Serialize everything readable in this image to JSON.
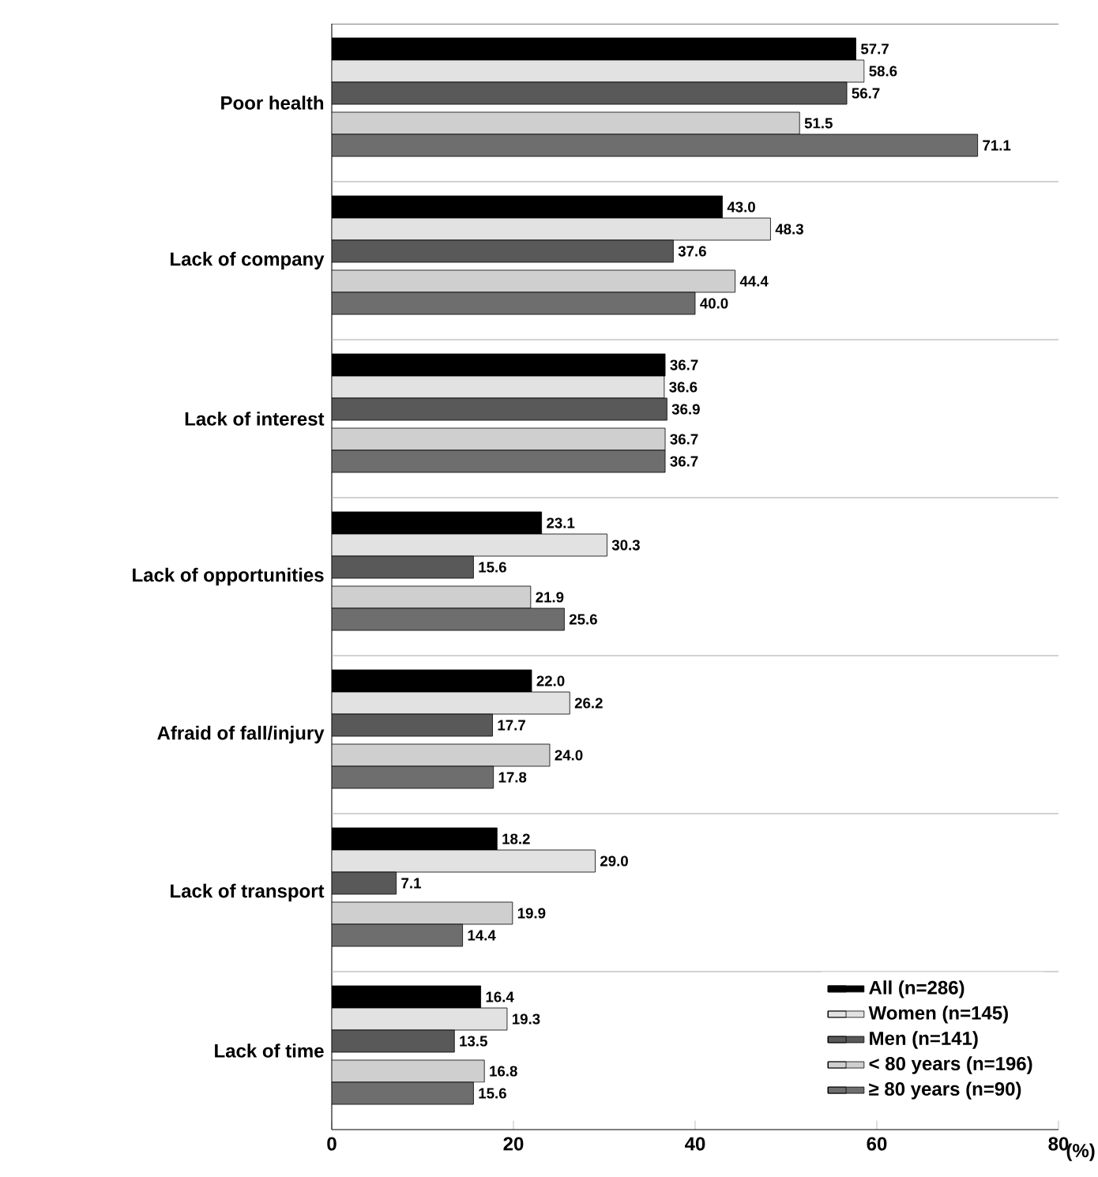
{
  "chart_data": {
    "type": "bar",
    "orientation": "horizontal",
    "xlabel": "(%)",
    "categories": [
      "Poor health",
      "Lack of company",
      "Lack of interest",
      "Lack of opportunities",
      "Afraid of fall/injury",
      "Lack of transport",
      "Lack of time"
    ],
    "series": [
      {
        "name": "All (n=286)",
        "color": "#000000",
        "values": [
          57.7,
          43.0,
          36.7,
          23.1,
          22.0,
          18.2,
          16.4
        ],
        "value_labels": [
          "57.7",
          "43.0",
          "36.7",
          "23.1",
          "22.0",
          "18.2",
          "16.4"
        ]
      },
      {
        "name": "Women (n=145)",
        "color": "#e2e2e2",
        "values": [
          58.6,
          48.3,
          36.6,
          30.3,
          26.2,
          29.0,
          19.3
        ],
        "value_labels": [
          "58.6",
          "48.3",
          "36.6",
          "30.3",
          "26.2",
          "29.0",
          "19.3"
        ]
      },
      {
        "name": "Men (n=141)",
        "color": "#595959",
        "values": [
          56.7,
          37.6,
          36.9,
          15.6,
          17.7,
          7.1,
          13.5
        ],
        "value_labels": [
          "56.7",
          "37.6",
          "36.9",
          "15.6",
          "17.7",
          "7.1",
          "13.5"
        ]
      },
      {
        "name": "< 80 years (n=196)",
        "color": "#cfcfcf",
        "values": [
          51.5,
          44.4,
          36.7,
          21.9,
          24.0,
          19.9,
          16.8
        ],
        "value_labels": [
          "51.5",
          "44.4",
          "36.7",
          "21.9",
          "24.0",
          "19.9",
          "16.8"
        ]
      },
      {
        "name": "≥ 80 years (n=90)",
        "color": "#6e6e6e",
        "values": [
          71.1,
          40.0,
          36.7,
          25.6,
          17.8,
          14.4,
          15.6
        ],
        "value_labels": [
          "71.1",
          "40.0",
          "36.7",
          "25.6",
          "17.8",
          "14.4",
          "15.6"
        ]
      }
    ],
    "xlim": [
      0,
      80
    ],
    "xticks": [
      0,
      20,
      40,
      60,
      80
    ],
    "legend": "bottom right",
    "grid": false
  }
}
